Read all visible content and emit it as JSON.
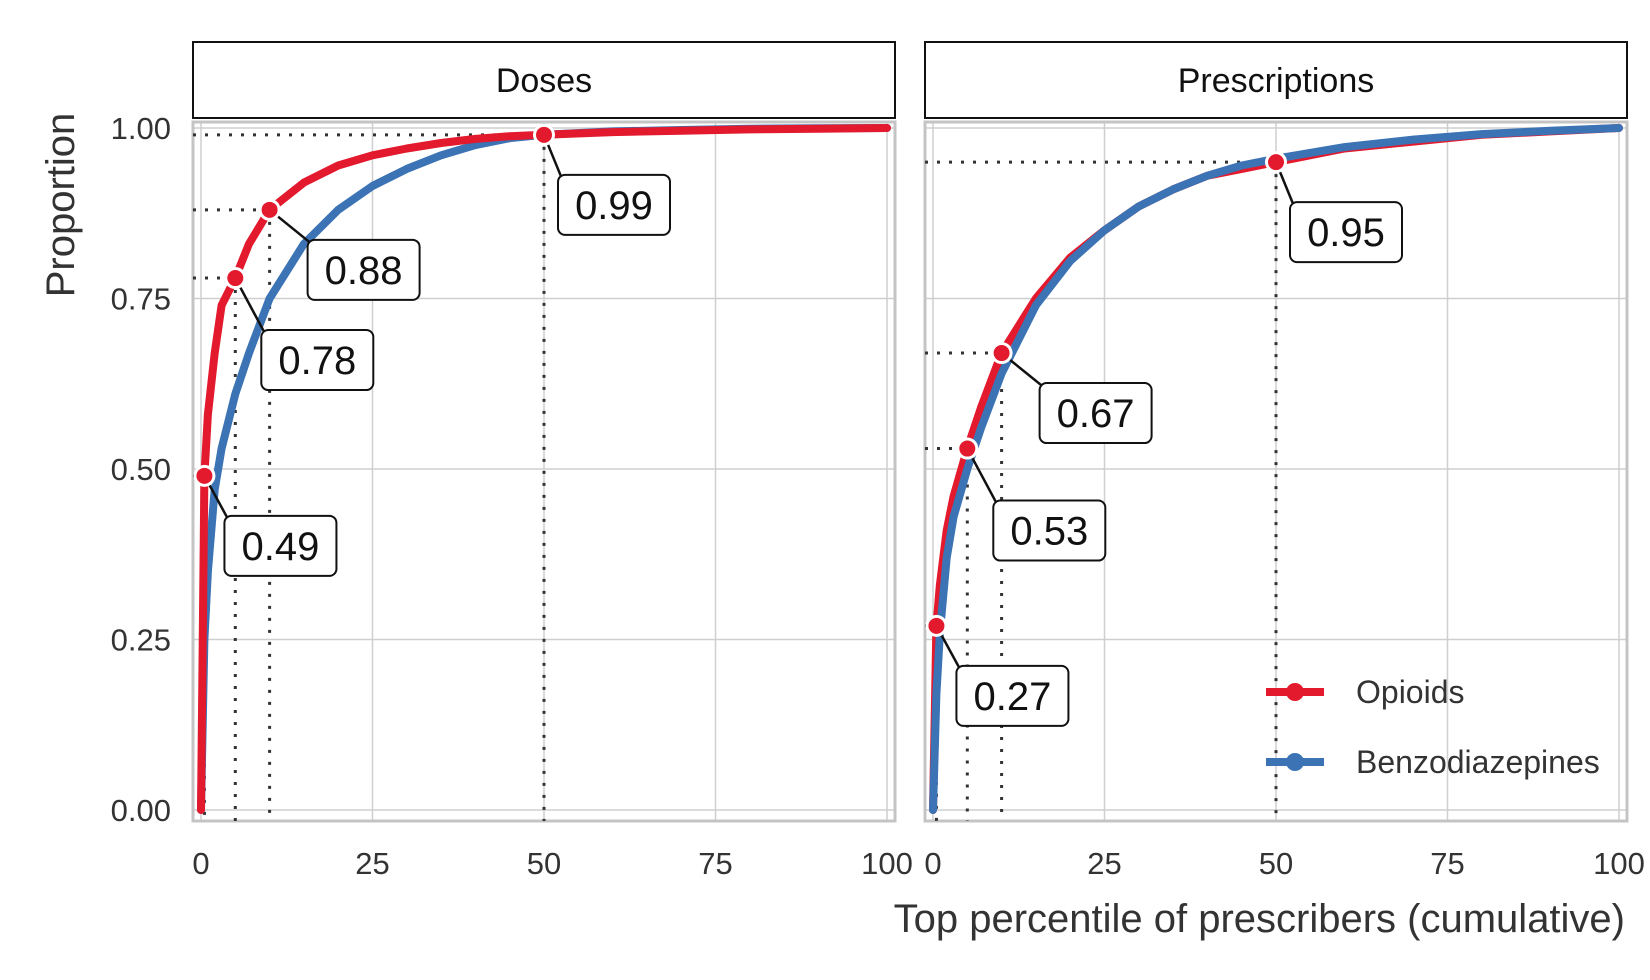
{
  "chart_data": {
    "type": "line",
    "ylabel": "Proportion",
    "xlabel": "Top percentile of prescribers (cumulative)",
    "xlim": [
      0,
      100
    ],
    "ylim": [
      0,
      1
    ],
    "x_ticks": [
      "0",
      "25",
      "50",
      "75",
      "100"
    ],
    "y_ticks": [
      "0.00",
      "0.25",
      "0.50",
      "0.75",
      "1.00"
    ],
    "grid": true,
    "legend_position": "bottom-right",
    "legend": [
      {
        "name": "Opioids",
        "color": "#e31a2d"
      },
      {
        "name": "Benzodiazepines",
        "color": "#3b73b4"
      }
    ],
    "panels": [
      {
        "title": "Doses",
        "series": [
          {
            "name": "Opioids",
            "color": "#e31a2d",
            "x": [
              0,
              0.5,
              1,
              2,
              3,
              5,
              7,
              10,
              15,
              20,
              25,
              30,
              35,
              40,
              45,
              50,
              60,
              70,
              80,
              90,
              100
            ],
            "y": [
              0,
              0.49,
              0.58,
              0.67,
              0.74,
              0.78,
              0.83,
              0.88,
              0.92,
              0.945,
              0.96,
              0.97,
              0.978,
              0.984,
              0.988,
              0.99,
              0.994,
              0.996,
              0.998,
              0.999,
              1.0
            ]
          },
          {
            "name": "Benzodiazepines",
            "color": "#3b73b4",
            "x": [
              0,
              0.5,
              1,
              2,
              3,
              5,
              7,
              10,
              15,
              20,
              25,
              30,
              35,
              40,
              45,
              50,
              60,
              70,
              80,
              90,
              100
            ],
            "y": [
              0,
              0.25,
              0.35,
              0.47,
              0.53,
              0.61,
              0.67,
              0.75,
              0.83,
              0.88,
              0.915,
              0.94,
              0.96,
              0.975,
              0.985,
              0.99,
              0.995,
              0.997,
              0.999,
              0.9995,
              1.0
            ]
          }
        ],
        "callouts": [
          {
            "x": 0.5,
            "y": 0.49,
            "label": "0.49"
          },
          {
            "x": 5,
            "y": 0.78,
            "label": "0.78"
          },
          {
            "x": 10,
            "y": 0.88,
            "label": "0.88"
          },
          {
            "x": 50,
            "y": 0.99,
            "label": "0.99"
          }
        ]
      },
      {
        "title": "Prescriptions",
        "series": [
          {
            "name": "Opioids",
            "color": "#e31a2d",
            "x": [
              0,
              0.5,
              1,
              2,
              3,
              5,
              7,
              10,
              15,
              20,
              25,
              30,
              35,
              40,
              45,
              50,
              60,
              70,
              80,
              90,
              100
            ],
            "y": [
              0,
              0.27,
              0.33,
              0.41,
              0.46,
              0.53,
              0.59,
              0.67,
              0.75,
              0.81,
              0.85,
              0.885,
              0.91,
              0.93,
              0.94,
              0.95,
              0.97,
              0.98,
              0.99,
              0.995,
              1.0
            ]
          },
          {
            "name": "Benzodiazepines",
            "color": "#3b73b4",
            "x": [
              0,
              0.5,
              1,
              2,
              3,
              5,
              7,
              10,
              15,
              20,
              25,
              30,
              35,
              40,
              45,
              50,
              60,
              70,
              80,
              90,
              100
            ],
            "y": [
              0,
              0.17,
              0.26,
              0.37,
              0.43,
              0.5,
              0.56,
              0.64,
              0.74,
              0.805,
              0.85,
              0.885,
              0.91,
              0.93,
              0.945,
              0.955,
              0.972,
              0.983,
              0.991,
              0.996,
              1.0
            ]
          }
        ],
        "callouts": [
          {
            "x": 0.5,
            "y": 0.27,
            "label": "0.27"
          },
          {
            "x": 5,
            "y": 0.53,
            "label": "0.53"
          },
          {
            "x": 10,
            "y": 0.67,
            "label": "0.67"
          },
          {
            "x": 50,
            "y": 0.95,
            "label": "0.95"
          }
        ]
      }
    ]
  }
}
